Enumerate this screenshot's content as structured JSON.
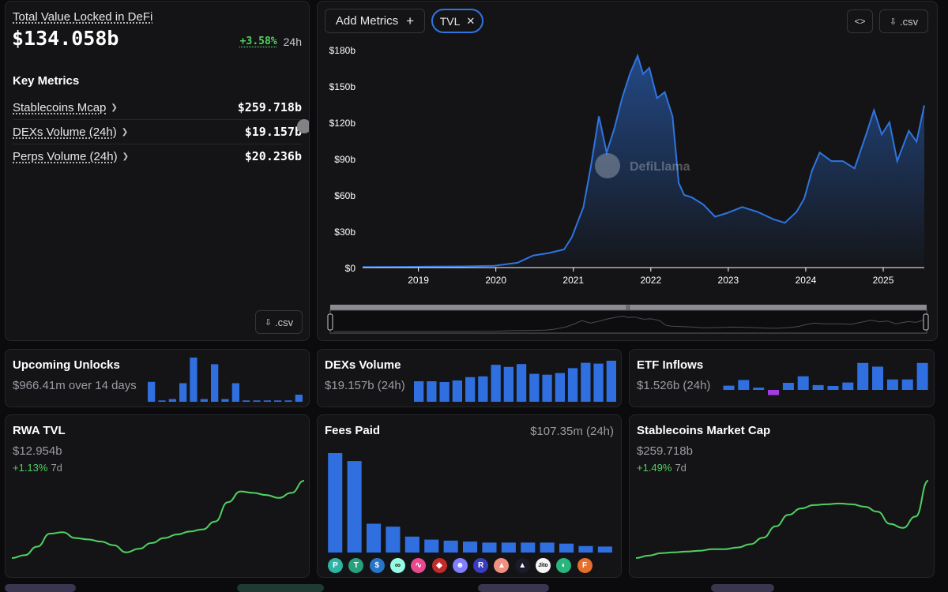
{
  "tvl_panel": {
    "title": "Total Value Locked in DeFi",
    "value": "$134.058b",
    "change": "+3.58%",
    "period": "24h",
    "key_metrics_heading": "Key Metrics",
    "metrics": [
      {
        "label": "Stablecoins Mcap",
        "value": "$259.718b"
      },
      {
        "label": "DEXs Volume (24h)",
        "value": "$19.157b"
      },
      {
        "label": "Perps Volume (24h)",
        "value": "$20.236b"
      }
    ],
    "csv_label": ".csv"
  },
  "chart_panel": {
    "add_metrics_label": "Add Metrics",
    "tvl_chip_label": "TVL",
    "embed_icon": "code-icon",
    "csv_label": ".csv",
    "watermark": "DefiLlama",
    "line_color": "#2f74e0"
  },
  "chart_data": {
    "type": "area",
    "title": "",
    "xlabel": "",
    "ylabel": "",
    "ylim": [
      0,
      180
    ],
    "yticks": [
      "$0",
      "$30b",
      "$60b",
      "$90b",
      "$120b",
      "$150b",
      "$180b"
    ],
    "xticks": [
      "2019",
      "2020",
      "2021",
      "2022",
      "2023",
      "2024",
      "2025"
    ],
    "x": [
      2018.3,
      2018.8,
      2019.2,
      2019.6,
      2020.0,
      2020.3,
      2020.5,
      2020.7,
      2020.9,
      2021.0,
      2021.15,
      2021.25,
      2021.35,
      2021.45,
      2021.55,
      2021.65,
      2021.75,
      2021.85,
      2021.92,
      2022.0,
      2022.1,
      2022.2,
      2022.3,
      2022.38,
      2022.45,
      2022.55,
      2022.7,
      2022.85,
      2023.0,
      2023.2,
      2023.4,
      2023.6,
      2023.75,
      2023.9,
      2024.0,
      2024.1,
      2024.2,
      2024.35,
      2024.5,
      2024.65,
      2024.8,
      2024.9,
      2025.0,
      2025.1,
      2025.2,
      2025.35,
      2025.45,
      2025.55
    ],
    "y": [
      0.5,
      0.6,
      0.8,
      1,
      1.5,
      4,
      10,
      12,
      15,
      25,
      50,
      85,
      125,
      95,
      115,
      140,
      160,
      175,
      160,
      165,
      140,
      145,
      125,
      70,
      60,
      58,
      52,
      42,
      45,
      50,
      46,
      40,
      37,
      46,
      57,
      80,
      95,
      88,
      88,
      82,
      110,
      130,
      110,
      120,
      88,
      113,
      104,
      134
    ]
  },
  "unlocks": {
    "title": "Upcoming Unlocks",
    "subtitle": "$966.41m over 14 days",
    "bars": [
      0.45,
      0.03,
      0.06,
      0.42,
      1.0,
      0.06,
      0.85,
      0.06,
      0.42,
      0.03,
      0.03,
      0.03,
      0.03,
      0.03,
      0.16
    ],
    "color": "#2f6fe0"
  },
  "dex_volume": {
    "title": "DEXs Volume",
    "subtitle": "$19.157b (24h)",
    "bars": [
      0.5,
      0.5,
      0.48,
      0.52,
      0.6,
      0.62,
      0.9,
      0.85,
      0.92,
      0.68,
      0.66,
      0.7,
      0.82,
      0.95,
      0.93,
      1.0
    ],
    "color": "#2f6fe0"
  },
  "etf_inflows": {
    "title": "ETF Inflows",
    "subtitle": "$1.526b (24h)",
    "bars": [
      0.15,
      0.35,
      0.08,
      -0.18,
      0.25,
      0.48,
      0.17,
      0.14,
      0.26,
      0.95,
      0.82,
      0.37,
      0.37,
      0.95
    ],
    "color": "#2f6fe0",
    "negative_color": "#a23ce0"
  },
  "rwa": {
    "title": "RWA TVL",
    "value": "$12.954b",
    "change": "+1.13%",
    "period": "7d",
    "line": [
      12,
      16,
      28,
      46,
      48,
      40,
      38,
      35,
      30,
      20,
      25,
      33,
      40,
      45,
      49,
      52,
      63,
      90,
      105,
      103,
      100,
      96,
      103,
      120
    ],
    "color": "#4fd161"
  },
  "fees": {
    "title": "Fees Paid",
    "value": "$107.35m (24h)",
    "bars": [
      1.0,
      0.92,
      0.29,
      0.26,
      0.16,
      0.13,
      0.12,
      0.11,
      0.1,
      0.1,
      0.1,
      0.1,
      0.09,
      0.065,
      0.06
    ],
    "icons": [
      "pancake-icon",
      "tether-icon",
      "circle-icon",
      "hyperliquid-icon",
      "pumpfun-icon",
      "tron-icon",
      "uniswap-icon",
      "raydium-icon",
      "solana-icon",
      "aave-icon",
      "jito-icon",
      "pill-icon",
      "fox-icon"
    ],
    "icon_colors": [
      "#2fb3a6",
      "#26a17b",
      "#2775ca",
      "#97fce4",
      "#e84a8f",
      "#c52a2a",
      "#7f7fff",
      "#3a3dbf",
      "#f09080",
      "#1a1a2a",
      "#f6f6f6",
      "#2ab57d",
      "#e86f2b"
    ],
    "icon_glyphs": [
      "P",
      "T",
      "$",
      "∞",
      "∿",
      "◆",
      "☻",
      "R",
      "▲",
      "▲",
      "Jito",
      "◐",
      "F"
    ],
    "color": "#2f6fe0"
  },
  "stablecoins": {
    "title": "Stablecoins Market Cap",
    "value": "$259.718b",
    "change": "+1.49%",
    "period": "7d",
    "line": [
      5,
      8,
      11,
      12,
      13,
      14,
      16,
      16,
      18,
      22,
      30,
      44,
      58,
      66,
      70,
      71,
      72,
      71,
      68,
      62,
      47,
      42,
      56,
      100
    ],
    "color": "#4fd161"
  }
}
